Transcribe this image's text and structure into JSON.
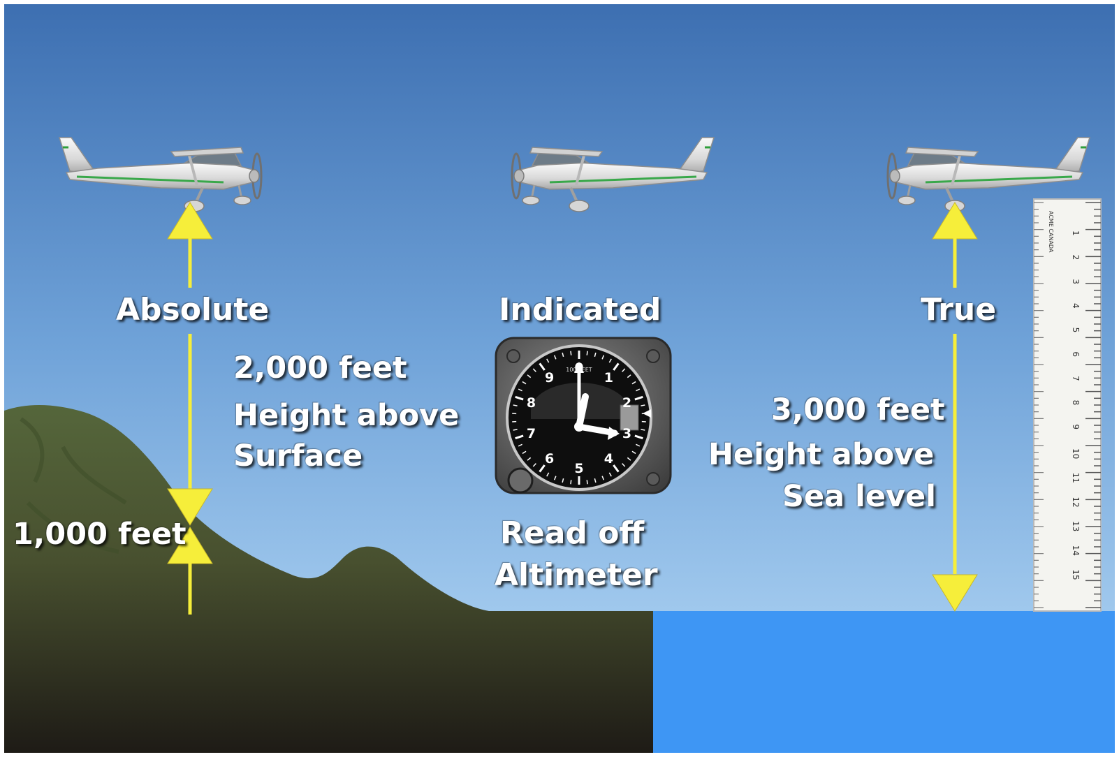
{
  "colors": {
    "sky_top": "#3E72B4",
    "sky_bottom": "#B6DAF7",
    "ground": "#4F5D37",
    "ground_dark": "#221F18",
    "sea": "#3E96F4",
    "arrow": "#F6EE3A",
    "label": "#FFFFFF"
  },
  "labels": {
    "absolute": "Absolute",
    "absolute_value": "2,000 feet",
    "absolute_desc_1": "Height above",
    "absolute_desc_2": "Surface",
    "terrain_value": "1,000 feet",
    "indicated": "Indicated",
    "indicated_desc_1": "Read off",
    "indicated_desc_2": "Altimeter",
    "true": "True",
    "true_value": "3,000 feet",
    "true_desc_1": "Height above",
    "true_desc_2": "Sea level"
  },
  "altimeter": {
    "dial_numbers": [
      "0",
      "1",
      "2",
      "3",
      "4",
      "5",
      "6",
      "7",
      "8",
      "9"
    ],
    "upper_text": "100 FEET",
    "icons": [
      "altimeter-icon"
    ]
  },
  "ruler": {
    "marks": [
      "1",
      "2",
      "3",
      "4",
      "5",
      "6",
      "7",
      "8",
      "9",
      "10",
      "11",
      "12",
      "13",
      "14",
      "15"
    ],
    "brand": "ACME CANADA"
  },
  "icons": [
    "airplane-icon",
    "mountain-icon",
    "ruler-icon",
    "arrow-up-icon",
    "arrow-down-icon"
  ]
}
